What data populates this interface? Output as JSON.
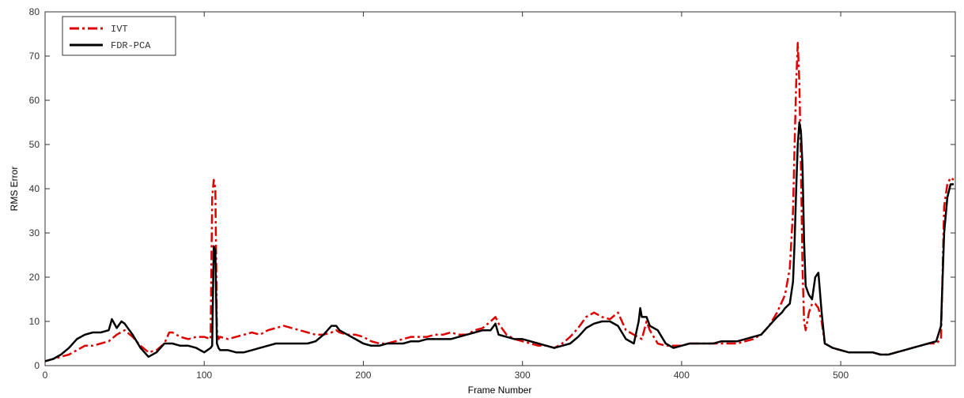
{
  "chart_data": {
    "type": "line",
    "xlabel": "Frame Number",
    "ylabel": "RMS Error",
    "xlim": [
      0,
      572
    ],
    "ylim": [
      0,
      80
    ],
    "xticks": [
      0,
      100,
      200,
      300,
      400,
      500
    ],
    "yticks": [
      0,
      10,
      20,
      30,
      40,
      50,
      60,
      70,
      80
    ],
    "grid": false,
    "legend_position": "top-left",
    "series": [
      {
        "name": "IVT",
        "color": "#e00000",
        "style": "dash-dot",
        "x": [
          0,
          5,
          10,
          15,
          20,
          25,
          30,
          35,
          40,
          45,
          50,
          55,
          60,
          65,
          70,
          75,
          78,
          80,
          85,
          90,
          95,
          100,
          104,
          105,
          106,
          107,
          108,
          109,
          110,
          115,
          120,
          125,
          130,
          135,
          140,
          145,
          150,
          155,
          160,
          165,
          170,
          175,
          180,
          183,
          185,
          190,
          195,
          200,
          205,
          210,
          215,
          220,
          225,
          230,
          235,
          240,
          245,
          250,
          255,
          260,
          265,
          270,
          275,
          280,
          283,
          285,
          290,
          295,
          300,
          305,
          310,
          315,
          320,
          325,
          330,
          335,
          340,
          345,
          350,
          355,
          360,
          365,
          370,
          375,
          378,
          380,
          385,
          390,
          395,
          400,
          405,
          410,
          415,
          420,
          425,
          430,
          435,
          440,
          445,
          450,
          455,
          460,
          465,
          468,
          470,
          471,
          472,
          473,
          474,
          475,
          476,
          477,
          478,
          480,
          482,
          484,
          486,
          488,
          490,
          495,
          500,
          505,
          510,
          515,
          520,
          525,
          530,
          535,
          540,
          545,
          550,
          555,
          560,
          563,
          565,
          567,
          569,
          571
        ],
        "y": [
          1,
          1.5,
          2,
          2.5,
          3.5,
          4.5,
          4.5,
          5,
          5.5,
          7,
          8,
          6.5,
          4.5,
          3,
          3.5,
          5,
          7.5,
          7.5,
          6.5,
          6,
          6.5,
          6.5,
          6,
          38,
          42,
          40,
          8,
          6,
          6.5,
          6,
          6.5,
          7,
          7.5,
          7,
          8,
          8.5,
          9,
          8.5,
          8,
          7.5,
          7,
          7,
          7.5,
          8,
          7.5,
          7,
          7,
          6.5,
          5.5,
          5,
          5,
          5.5,
          6,
          6.5,
          6.5,
          6.5,
          7,
          7,
          7.5,
          7,
          7,
          8,
          8.5,
          10,
          11,
          9.5,
          7,
          6,
          5.5,
          5,
          4.5,
          4.5,
          4,
          5,
          6.5,
          8.5,
          11,
          12,
          11,
          10.5,
          12,
          8,
          7,
          6,
          10,
          8,
          5,
          4.5,
          4.5,
          4.5,
          5,
          5,
          5,
          5,
          5,
          5,
          5,
          5.5,
          6,
          7,
          9,
          12,
          16,
          22,
          35,
          50,
          64,
          73,
          64,
          45,
          22,
          10,
          8,
          12,
          14,
          14,
          13,
          10,
          5,
          4,
          3.5,
          3,
          3,
          3,
          3,
          2.5,
          2.5,
          3,
          3.5,
          4,
          4.5,
          5,
          5,
          6,
          36,
          41,
          42.5,
          42
        ]
      },
      {
        "name": "FDR-PCA",
        "color": "#000000",
        "style": "solid",
        "x": [
          0,
          5,
          10,
          15,
          20,
          25,
          30,
          35,
          40,
          42,
          45,
          48,
          50,
          55,
          60,
          65,
          70,
          75,
          80,
          85,
          90,
          95,
          100,
          104,
          105,
          106,
          107,
          108,
          109,
          110,
          115,
          120,
          125,
          130,
          135,
          140,
          145,
          150,
          155,
          160,
          165,
          170,
          175,
          180,
          183,
          185,
          190,
          195,
          200,
          205,
          210,
          215,
          220,
          225,
          230,
          235,
          240,
          245,
          250,
          255,
          260,
          265,
          270,
          275,
          280,
          283,
          285,
          290,
          295,
          300,
          305,
          310,
          315,
          320,
          325,
          330,
          335,
          340,
          345,
          350,
          355,
          360,
          365,
          370,
          373,
          374,
          375,
          378,
          380,
          385,
          390,
          395,
          400,
          405,
          410,
          415,
          420,
          425,
          430,
          435,
          440,
          445,
          450,
          455,
          460,
          463,
          465,
          468,
          470,
          471,
          472,
          473,
          474,
          475,
          476,
          477,
          478,
          480,
          482,
          484,
          486,
          488,
          490,
          495,
          500,
          505,
          510,
          515,
          520,
          525,
          530,
          535,
          540,
          545,
          550,
          555,
          560,
          563,
          565,
          567,
          569,
          571
        ],
        "y": [
          1,
          1.5,
          2.5,
          4,
          6,
          7,
          7.5,
          7.5,
          8,
          10.5,
          8.5,
          10,
          9.5,
          7,
          4,
          2,
          3,
          5,
          5,
          4.5,
          4.5,
          4,
          3,
          4,
          4.5,
          27,
          26,
          5,
          4,
          3.5,
          3.5,
          3,
          3,
          3.5,
          4,
          4.5,
          5,
          5,
          5,
          5,
          5,
          5.5,
          7,
          9,
          9,
          8,
          7,
          6,
          5,
          4.5,
          4.5,
          5,
          5,
          5,
          5.5,
          5.5,
          6,
          6,
          6,
          6,
          6.5,
          7,
          7.5,
          8,
          8,
          9.5,
          7,
          6.5,
          6,
          6,
          5.5,
          5,
          4.5,
          4,
          4.5,
          5,
          6.5,
          8.5,
          9.5,
          10,
          10,
          9,
          6,
          5,
          10,
          13,
          11,
          11,
          9,
          8,
          5,
          4,
          4.5,
          5,
          5,
          5,
          5,
          5.5,
          5.5,
          5.5,
          6,
          6.5,
          7,
          9,
          11,
          12,
          13,
          14,
          19,
          28,
          40,
          50,
          55,
          53,
          45,
          28,
          18,
          16,
          15,
          20,
          21,
          12,
          5,
          4,
          3.5,
          3,
          3,
          3,
          3,
          2.5,
          2.5,
          3,
          3.5,
          4,
          4.5,
          5,
          5.5,
          9,
          30,
          38,
          41,
          41
        ]
      }
    ]
  }
}
